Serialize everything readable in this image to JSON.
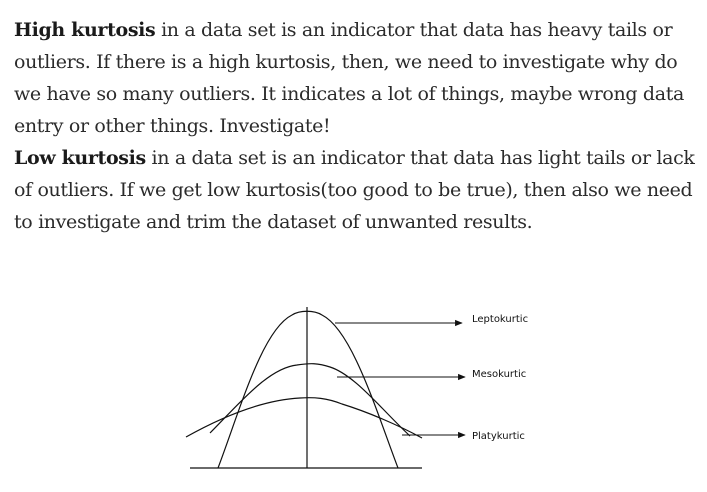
{
  "paragraphs": [
    {
      "bold": "High kurtosis",
      "text": " in a data set is an indicator that data has heavy tails or outliers. If there is a high kurtosis, then, we need to investigate why do we have so many outliers. It indicates a lot of things, maybe wrong data entry or other things. Investigate!"
    },
    {
      "bold": "Low kurtosis",
      "text": " in a data set is an indicator that data has light tails or lack of outliers. If we get low kurtosis(too good to be true), then also we need to investigate and trim the dataset of unwanted results."
    }
  ],
  "figure": {
    "labels": {
      "leptokurtic": "Leptokurtic",
      "mesokurtic": "Mesokurtic",
      "platykurtic": "Platykurtic"
    }
  }
}
